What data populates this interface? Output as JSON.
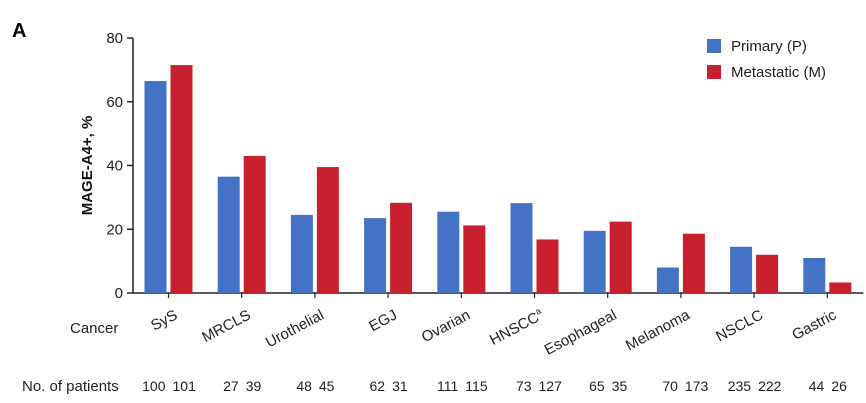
{
  "panel_label": "A",
  "chart_data": {
    "type": "bar",
    "title": "",
    "xlabel": "",
    "ylabel": "MAGE-A4+, %",
    "ylim": [
      0,
      80
    ],
    "yticks": [
      0,
      20,
      40,
      60,
      80
    ],
    "grid": false,
    "legend_position": "top-right",
    "categories": [
      "SyS",
      "MRCLS",
      "Urothelial",
      "EGJ",
      "Ovarian",
      "HNSCC",
      "Esophageal",
      "Melanoma",
      "NSCLC",
      "Gastric"
    ],
    "category_superscripts": [
      "",
      "",
      "",
      "",
      "",
      "a",
      "",
      "",
      "",
      ""
    ],
    "row_label_categories": "Cancer",
    "series": [
      {
        "name": "Primary (P)",
        "color": "#4472c4",
        "values": [
          66.5,
          36.5,
          24.5,
          23.5,
          25.5,
          28.2,
          19.5,
          8,
          14.5,
          11
        ]
      },
      {
        "name": "Metastatic (M)",
        "color": "#c8202f",
        "values": [
          71.5,
          43,
          39.5,
          28.3,
          21.2,
          16.8,
          22.4,
          18.6,
          12,
          3.3
        ]
      }
    ],
    "patients_label": "No. of patients",
    "patients": [
      [
        "100",
        "101"
      ],
      [
        "27",
        "39"
      ],
      [
        "48",
        "45"
      ],
      [
        "62",
        "31"
      ],
      [
        "111",
        "115"
      ],
      [
        "73",
        "127"
      ],
      [
        "65",
        "35"
      ],
      [
        "70",
        "173"
      ],
      [
        "235",
        "222"
      ],
      [
        "44",
        "26"
      ]
    ]
  }
}
